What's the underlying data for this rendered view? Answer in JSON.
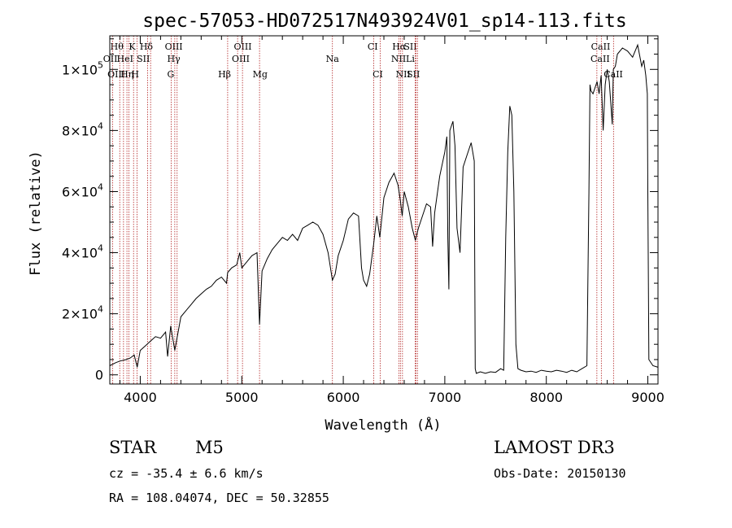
{
  "chart_data": {
    "type": "line",
    "title": "spec-57053-HD072517N493924V01_sp14-113.fits",
    "xlabel": "Wavelength (Å)",
    "ylabel": "Flux (relative)",
    "xlim": [
      3700,
      9100
    ],
    "ylim": [
      -3000,
      111000
    ],
    "x_ticks": [
      4000,
      5000,
      6000,
      7000,
      8000,
      9000
    ],
    "x_tick_labels": [
      "4000",
      "5000",
      "6000",
      "7000",
      "8000",
      "9000"
    ],
    "y_ticks": [
      {
        "value": 0,
        "mant": "0",
        "exp": ""
      },
      {
        "value": 20000,
        "mant": "2×10",
        "exp": "4"
      },
      {
        "value": 40000,
        "mant": "4×10",
        "exp": "4"
      },
      {
        "value": 60000,
        "mant": "6×10",
        "exp": "4"
      },
      {
        "value": 80000,
        "mant": "8×10",
        "exp": "4"
      },
      {
        "value": 100000,
        "mant": "1×10",
        "exp": "5"
      }
    ],
    "series": [
      {
        "name": "flux",
        "x": [
          3700,
          3760,
          3800,
          3860,
          3900,
          3940,
          3970,
          4000,
          4050,
          4100,
          4150,
          4200,
          4250,
          4270,
          4300,
          4340,
          4400,
          4450,
          4500,
          4550,
          4600,
          4650,
          4700,
          4750,
          4800,
          4850,
          4861,
          4900,
          4950,
          4980,
          5000,
          5050,
          5100,
          5150,
          5175,
          5200,
          5250,
          5300,
          5350,
          5400,
          5450,
          5500,
          5550,
          5600,
          5650,
          5700,
          5750,
          5800,
          5850,
          5893,
          5920,
          5950,
          6000,
          6050,
          6100,
          6150,
          6180,
          6200,
          6230,
          6260,
          6300,
          6330,
          6360,
          6400,
          6450,
          6500,
          6540,
          6563,
          6580,
          6600,
          6640,
          6680,
          6710,
          6740,
          6780,
          6820,
          6860,
          6880,
          6900,
          6950,
          7000,
          7020,
          7030,
          7040,
          7050,
          7080,
          7100,
          7120,
          7150,
          7180,
          7220,
          7260,
          7290,
          7300,
          7310,
          7350,
          7400,
          7450,
          7500,
          7550,
          7580,
          7600,
          7620,
          7640,
          7660,
          7680,
          7700,
          7720,
          7750,
          7800,
          7850,
          7900,
          7950,
          8000,
          8050,
          8100,
          8150,
          8200,
          8250,
          8300,
          8350,
          8400,
          8420,
          8430,
          8440,
          8460,
          8500,
          8520,
          8540,
          8560,
          8580,
          8600,
          8620,
          8650,
          8660,
          8680,
          8700,
          8750,
          8800,
          8850,
          8900,
          8940,
          8960,
          8980,
          8995,
          9000,
          9010,
          9050,
          9100
        ],
        "y": [
          3000,
          4000,
          4500,
          5000,
          5500,
          6500,
          2500,
          8000,
          9500,
          11000,
          12500,
          12000,
          14000,
          6000,
          16000,
          8000,
          19000,
          21000,
          23000,
          25000,
          26500,
          28000,
          29000,
          31000,
          32000,
          30000,
          33500,
          35000,
          36000,
          40000,
          35000,
          37000,
          39000,
          40000,
          16500,
          34000,
          38000,
          41000,
          43000,
          45000,
          44000,
          46000,
          44000,
          48000,
          49000,
          50000,
          49000,
          46000,
          40000,
          31000,
          33000,
          39000,
          44000,
          51000,
          53000,
          52000,
          35000,
          31000,
          29000,
          33000,
          43000,
          52000,
          45000,
          58000,
          63000,
          66000,
          62000,
          57000,
          52000,
          60000,
          55000,
          48000,
          44000,
          48000,
          52000,
          56000,
          55000,
          42000,
          53000,
          65000,
          73000,
          78000,
          45000,
          28000,
          80000,
          83000,
          75000,
          48000,
          40000,
          68000,
          72000,
          76000,
          70000,
          2000,
          500,
          1000,
          500,
          1000,
          800,
          2000,
          1500,
          45000,
          73000,
          88000,
          85000,
          60000,
          10000,
          2000,
          1500,
          1000,
          1200,
          800,
          1500,
          1200,
          1000,
          1500,
          1200,
          800,
          1500,
          1000,
          2000,
          3000,
          60000,
          95000,
          93000,
          92000,
          96000,
          92000,
          98000,
          80000,
          95000,
          100000,
          96000,
          82000,
          100000,
          101000,
          105000,
          107000,
          106000,
          104000,
          108000,
          101000,
          103000,
          98000,
          92000,
          60000,
          5000,
          3000,
          2500
        ]
      }
    ],
    "spectral_lines": [
      {
        "label": "Hθ",
        "wave": 3798,
        "row": 0,
        "lx": 3770
      },
      {
        "label": "K",
        "wave": 3934,
        "row": 0,
        "lx": 3920
      },
      {
        "label": "Hδ",
        "wave": 4102,
        "row": 0,
        "lx": 4060
      },
      {
        "label": "OIII",
        "wave": 4363,
        "row": 0,
        "lx": 4330
      },
      {
        "label": "OIII",
        "wave": 4959,
        "row": 0,
        "lx": 5010
      },
      {
        "label": "CI",
        "wave": 6300,
        "row": 0,
        "lx": 6290
      },
      {
        "label": "Hα",
        "wave": 6563,
        "row": 0,
        "lx": 6550
      },
      {
        "label": "SII",
        "wave": 6716,
        "row": 0,
        "lx": 6660
      },
      {
        "label": "CaII",
        "wave": 8498,
        "row": 0,
        "lx": 8535
      },
      {
        "label": "OII",
        "wave": 3727,
        "row": 1,
        "lx": 3705
      },
      {
        "label": "HeI",
        "wave": 3889,
        "row": 1,
        "lx": 3850
      },
      {
        "label": "SII",
        "wave": 4072,
        "row": 1,
        "lx": 4030
      },
      {
        "label": "Hγ",
        "wave": 4340,
        "row": 1,
        "lx": 4330
      },
      {
        "label": "OIII",
        "wave": 5007,
        "row": 1,
        "lx": 4990
      },
      {
        "label": "Na",
        "wave": 5893,
        "row": 1,
        "lx": 5893
      },
      {
        "label": "NII",
        "wave": 6583,
        "row": 1,
        "lx": 6545
      },
      {
        "label": "Li",
        "wave": 6708,
        "row": 1,
        "lx": 6660
      },
      {
        "label": "CaII",
        "wave": 8542,
        "row": 1,
        "lx": 8530
      },
      {
        "label": "OIII",
        "wave": 3869,
        "row": 2,
        "lx": 3765
      },
      {
        "label": "Hη",
        "wave": 3835,
        "row": 2,
        "lx": 3870
      },
      {
        "label": "H",
        "wave": 3968,
        "row": 2,
        "lx": 3950
      },
      {
        "label": "G",
        "wave": 4305,
        "row": 2,
        "lx": 4300
      },
      {
        "label": "Hβ",
        "wave": 4861,
        "row": 2,
        "lx": 4830
      },
      {
        "label": "Mg",
        "wave": 5175,
        "row": 2,
        "lx": 5180
      },
      {
        "label": "CI",
        "wave": 6363,
        "row": 2,
        "lx": 6340
      },
      {
        "label": "NII",
        "wave": 6548,
        "row": 2,
        "lx": 6590
      },
      {
        "label": "SII",
        "wave": 6731,
        "row": 2,
        "lx": 6690
      },
      {
        "label": "CaII",
        "wave": 8662,
        "row": 2,
        "lx": 8660
      }
    ]
  },
  "info": {
    "obj_class": "STAR",
    "subclass": "M5",
    "survey": "LAMOST DR3",
    "cz": "cz = -35.4 ± 6.6 km/s",
    "obs_date": "Obs-Date: 20150130",
    "coords": "RA = 108.04074, DEC =  50.32855"
  },
  "colors": {
    "line_marker": "#b22222",
    "spectrum": "#000000"
  }
}
